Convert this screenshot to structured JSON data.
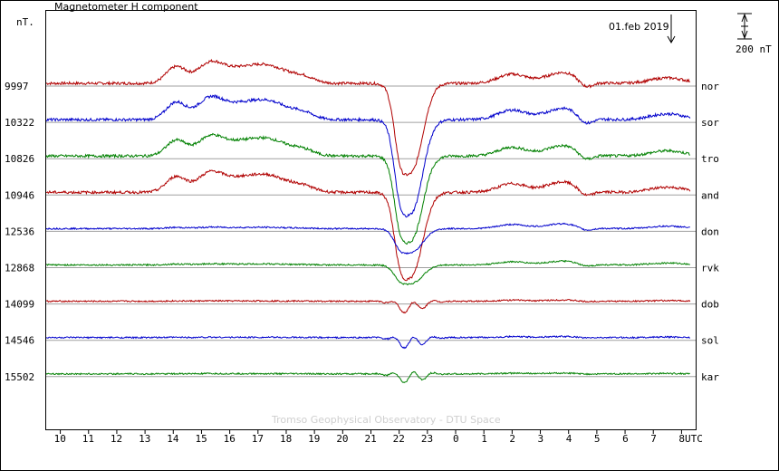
{
  "chart_data": {
    "type": "line",
    "title": "Magnetometer H component",
    "ylabel": "nT.",
    "date_label": "01.feb 2019",
    "scale_label": "200 nT",
    "xlabel": "UTC",
    "watermark": "Tromso Geophysical Observatory - DTU Space",
    "x_ticks": [
      "10",
      "11",
      "12",
      "13",
      "14",
      "15",
      "16",
      "17",
      "18",
      "19",
      "20",
      "21",
      "22",
      "23",
      "0",
      "1",
      "2",
      "3",
      "4",
      "5",
      "6",
      "7",
      "8"
    ],
    "stations": [
      {
        "name": "nor",
        "baseline": "9997",
        "color": "#b00000",
        "amp": 1.0
      },
      {
        "name": "sor",
        "baseline": "10322",
        "color": "#0000cc",
        "amp": 1.05
      },
      {
        "name": "tro",
        "baseline": "10826",
        "color": "#008000",
        "amp": 0.95
      },
      {
        "name": "and",
        "baseline": "10946",
        "color": "#b00000",
        "amp": 0.95
      },
      {
        "name": "don",
        "baseline": "12536",
        "color": "#0000cc",
        "amp": 0.45
      },
      {
        "name": "rvk",
        "baseline": "12868",
        "color": "#008000",
        "amp": 0.35
      },
      {
        "name": "dob",
        "baseline": "14099",
        "color": "#b00000",
        "amp": 0.12
      },
      {
        "name": "sol",
        "baseline": "14546",
        "color": "#0000cc",
        "amp": 0.1
      },
      {
        "name": "kar",
        "baseline": "15502",
        "color": "#008000",
        "amp": 0.07
      }
    ],
    "x_range": [
      "09:30",
      "08:30"
    ],
    "grid": "horizontal-baselines"
  }
}
